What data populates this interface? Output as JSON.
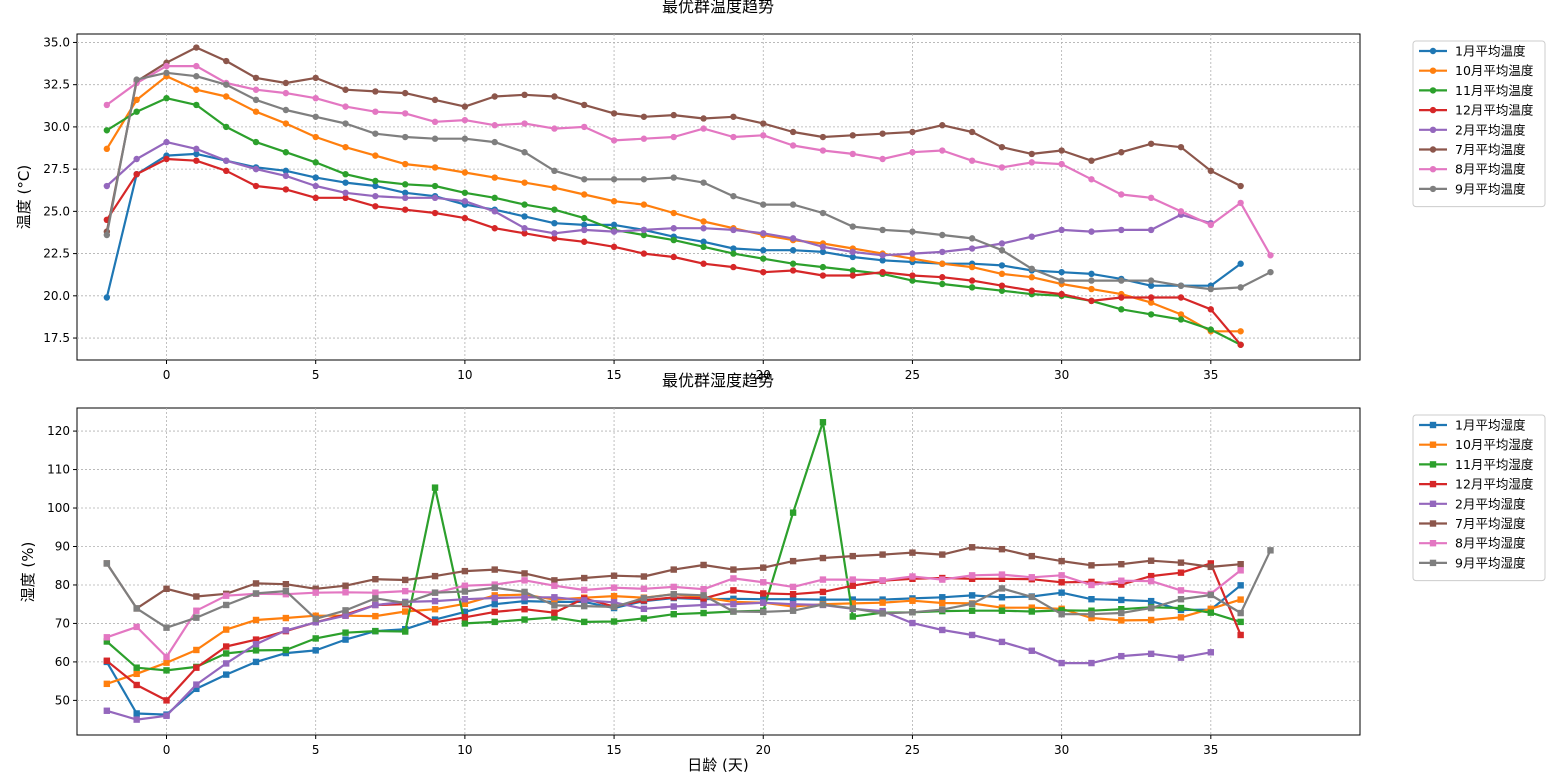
{
  "chart_data": [
    {
      "type": "line",
      "title": "最优群温度趋势",
      "xlabel": "",
      "ylabel": "温度 (°C)",
      "xlim": [
        -3,
        40
      ],
      "ylim": [
        16.2,
        35.5
      ],
      "xticks": [
        0,
        5,
        10,
        15,
        20,
        25,
        30,
        35
      ],
      "yticks": [
        17.5,
        20.0,
        22.5,
        25.0,
        27.5,
        30.0,
        32.5,
        35.0
      ],
      "ytick_labels": [
        "17.5",
        "20.0",
        "22.5",
        "25.0",
        "27.5",
        "30.0",
        "32.5",
        "35.0"
      ],
      "grid": true,
      "legend_position": "outside-right",
      "marker": "circle",
      "series": [
        {
          "name": "1月平均温度",
          "color": "#1f77b4",
          "x_start": -2,
          "values": [
            19.9,
            27.2,
            28.3,
            28.4,
            28.0,
            27.6,
            27.4,
            27.0,
            26.7,
            26.5,
            26.1,
            25.9,
            25.4,
            25.1,
            24.7,
            24.3,
            24.2,
            24.2,
            23.9,
            23.5,
            23.2,
            22.8,
            22.7,
            22.7,
            22.6,
            22.3,
            22.1,
            22.0,
            21.9,
            21.9,
            21.8,
            21.5,
            21.4,
            21.3,
            21.0,
            20.6,
            20.6,
            20.6,
            21.9
          ]
        },
        {
          "name": "10月平均温度",
          "color": "#ff7f0e",
          "x_start": -2,
          "values": [
            28.7,
            31.6,
            33.0,
            32.2,
            31.8,
            30.9,
            30.2,
            29.4,
            28.8,
            28.3,
            27.8,
            27.6,
            27.3,
            27.0,
            26.7,
            26.4,
            26.0,
            25.6,
            25.4,
            24.9,
            24.4,
            24.0,
            23.6,
            23.3,
            23.1,
            22.8,
            22.5,
            22.2,
            21.9,
            21.7,
            21.3,
            21.1,
            20.7,
            20.4,
            20.1,
            19.6,
            18.9,
            17.9,
            17.9
          ]
        },
        {
          "name": "11月平均温度",
          "color": "#2ca02c",
          "x_start": -2,
          "values": [
            29.8,
            30.9,
            31.7,
            31.3,
            30.0,
            29.1,
            28.5,
            27.9,
            27.2,
            26.8,
            26.6,
            26.5,
            26.1,
            25.8,
            25.4,
            25.1,
            24.6,
            23.9,
            23.6,
            23.3,
            22.9,
            22.5,
            22.2,
            21.9,
            21.7,
            21.5,
            21.3,
            20.9,
            20.7,
            20.5,
            20.3,
            20.1,
            20.0,
            19.7,
            19.2,
            18.9,
            18.6,
            18.0,
            17.1
          ]
        },
        {
          "name": "12月平均温度",
          "color": "#d62728",
          "x_start": -2,
          "values": [
            24.5,
            27.2,
            28.1,
            28.0,
            27.4,
            26.5,
            26.3,
            25.8,
            25.8,
            25.3,
            25.1,
            24.9,
            24.6,
            24.0,
            23.7,
            23.4,
            23.2,
            22.9,
            22.5,
            22.3,
            21.9,
            21.7,
            21.4,
            21.5,
            21.2,
            21.2,
            21.4,
            21.2,
            21.1,
            20.9,
            20.6,
            20.3,
            20.1,
            19.7,
            19.9,
            19.9,
            19.9,
            19.2,
            17.1
          ]
        },
        {
          "name": "2月平均温度",
          "color": "#9467bd",
          "x_start": -2,
          "values": [
            26.5,
            28.1,
            29.1,
            28.7,
            28.0,
            27.5,
            27.1,
            26.5,
            26.1,
            25.9,
            25.8,
            25.8,
            25.6,
            25.0,
            24.0,
            23.7,
            23.9,
            23.8,
            23.9,
            24.0,
            24.0,
            23.9,
            23.7,
            23.4,
            22.9,
            22.6,
            22.4,
            22.5,
            22.6,
            22.8,
            23.1,
            23.5,
            23.9,
            23.8,
            23.9,
            23.9,
            24.8,
            24.3
          ]
        },
        {
          "name": "7月平均温度",
          "color": "#8c564b",
          "x_start": -2,
          "values": [
            23.8,
            32.7,
            33.8,
            34.7,
            33.9,
            32.9,
            32.6,
            32.9,
            32.2,
            32.1,
            32.0,
            31.6,
            31.2,
            31.8,
            31.9,
            31.8,
            31.3,
            30.8,
            30.6,
            30.7,
            30.5,
            30.6,
            30.2,
            29.7,
            29.4,
            29.5,
            29.6,
            29.7,
            30.1,
            29.7,
            28.8,
            28.4,
            28.6,
            28.0,
            28.5,
            29.0,
            28.8,
            27.4,
            26.5
          ]
        },
        {
          "name": "8月平均温度",
          "color": "#e377c2",
          "x_start": -2,
          "values": [
            31.3,
            32.6,
            33.6,
            33.6,
            32.6,
            32.2,
            32.0,
            31.7,
            31.2,
            30.9,
            30.8,
            30.3,
            30.4,
            30.1,
            30.2,
            29.9,
            30.0,
            29.2,
            29.3,
            29.4,
            29.9,
            29.4,
            29.5,
            28.9,
            28.6,
            28.4,
            28.1,
            28.5,
            28.6,
            28.0,
            27.6,
            27.9,
            27.8,
            26.9,
            26.0,
            25.8,
            25.0,
            24.2,
            25.5,
            22.4
          ]
        },
        {
          "name": "9月平均温度",
          "color": "#7f7f7f",
          "x_start": -2,
          "values": [
            23.6,
            32.8,
            33.2,
            33.0,
            32.5,
            31.6,
            31.0,
            30.6,
            30.2,
            29.6,
            29.4,
            29.3,
            29.3,
            29.1,
            28.5,
            27.4,
            26.9,
            26.9,
            26.9,
            27.0,
            26.7,
            25.9,
            25.4,
            25.4,
            24.9,
            24.1,
            23.9,
            23.8,
            23.6,
            23.4,
            22.7,
            21.6,
            20.9,
            20.9,
            20.9,
            20.9,
            20.6,
            20.4,
            20.5,
            21.4
          ]
        }
      ]
    },
    {
      "type": "line",
      "title": "最优群湿度趋势",
      "xlabel": "日龄 (天)",
      "ylabel": "湿度 (%)",
      "xlim": [
        -3,
        40
      ],
      "ylim": [
        41,
        126
      ],
      "xticks": [
        0,
        5,
        10,
        15,
        20,
        25,
        30,
        35
      ],
      "yticks": [
        50,
        60,
        70,
        80,
        90,
        100,
        110,
        120
      ],
      "ytick_labels": [
        "50",
        "60",
        "70",
        "80",
        "90",
        "100",
        "110",
        "120"
      ],
      "grid": true,
      "legend_position": "outside-right",
      "marker": "square",
      "series": [
        {
          "name": "1月平均湿度",
          "color": "#1f77b4",
          "x_start": -2,
          "values": [
            60,
            46.6,
            46.3,
            53,
            56.7,
            60,
            62.3,
            63,
            65.8,
            68,
            68.5,
            71,
            73,
            75,
            75.8,
            75.6,
            75.6,
            74,
            75.8,
            76.6,
            76.3,
            76.4,
            76.3,
            76.3,
            76.2,
            76.2,
            76.2,
            76.5,
            76.8,
            77.3,
            76.8,
            77,
            78,
            76.3,
            76.1,
            75.8,
            73.5,
            73.6,
            79.9
          ]
        },
        {
          "name": "10月平均湿度",
          "color": "#ff7f0e",
          "x_start": -2,
          "values": [
            54.3,
            56.9,
            59.8,
            63.1,
            68.4,
            70.9,
            71.4,
            72,
            72,
            71.9,
            73.1,
            73.7,
            75.1,
            77.3,
            77.5,
            76.2,
            76.7,
            77.1,
            76.7,
            77.6,
            76.8,
            75.6,
            75.4,
            74.4,
            75,
            75.2,
            75.4,
            75.9,
            75.3,
            75.2,
            74.1,
            74.1,
            73.8,
            71.4,
            70.8,
            70.9,
            71.6,
            73.8,
            76.2
          ]
        },
        {
          "name": "11月平均湿度",
          "color": "#2ca02c",
          "x_start": -2,
          "values": [
            65.3,
            58.5,
            57.8,
            58.7,
            62.2,
            63,
            63.1,
            66.1,
            67.6,
            68,
            67.9,
            105.3,
            70,
            70.4,
            71,
            71.6,
            70.4,
            70.5,
            71.3,
            72.4,
            72.7,
            73.1,
            73.3,
            98.8,
            122.3,
            71.8,
            72.8,
            72.9,
            73.2,
            73.3,
            73.3,
            73.1,
            73.4,
            73.3,
            73.7,
            74.2,
            74,
            72.8,
            70.4
          ]
        },
        {
          "name": "12月平均湿度",
          "color": "#d62728",
          "x_start": -2,
          "values": [
            60.3,
            54,
            50,
            58.5,
            64,
            65.8,
            68,
            70.3,
            72.3,
            74.8,
            75,
            70.3,
            71.6,
            73,
            73.7,
            72.8,
            76.5,
            74.4,
            76,
            76.8,
            76.5,
            78.6,
            77.8,
            77.6,
            78.2,
            79.8,
            81.1,
            81.6,
            81.8,
            81.6,
            81.6,
            81.5,
            80.7,
            80.8,
            80.1,
            82.3,
            83.2,
            85.6,
            67
          ]
        },
        {
          "name": "2月平均湿度",
          "color": "#9467bd",
          "x_start": -2,
          "values": [
            47.3,
            45,
            46,
            54.1,
            59.6,
            64.6,
            68.2,
            70.3,
            72,
            74.8,
            75.6,
            75.8,
            76.3,
            76.6,
            76.8,
            76.8,
            76,
            75.5,
            73.8,
            74.4,
            74.8,
            75,
            75.4,
            75,
            74.8,
            73.8,
            73.2,
            70.1,
            68.3,
            67,
            65.2,
            62.9,
            59.7,
            59.7,
            61.5,
            62.1,
            61.1,
            62.5
          ]
        },
        {
          "name": "7月平均湿度",
          "color": "#8c564b",
          "x_start": -2,
          "values": [
            85.6,
            73.9,
            79,
            77,
            77.7,
            80.4,
            80.2,
            79,
            79.8,
            81.5,
            81.3,
            82.3,
            83.6,
            84,
            83,
            81.2,
            81.8,
            82.4,
            82.2,
            84,
            85.2,
            84,
            84.5,
            86.2,
            87,
            87.5,
            87.9,
            88.4,
            87.9,
            89.8,
            89.3,
            87.5,
            86.2,
            85.1,
            85.4,
            86.3,
            85.8,
            84.7,
            85.4
          ]
        },
        {
          "name": "8月平均湿度",
          "color": "#e377c2",
          "x_start": -2,
          "values": [
            66.4,
            69.1,
            61.3,
            73.3,
            77.2,
            77.7,
            77.6,
            78,
            78.1,
            78,
            78.4,
            78,
            79.8,
            80.1,
            81.2,
            79.8,
            78.7,
            79.3,
            79,
            79.5,
            78.9,
            81.7,
            80.7,
            79.5,
            81.4,
            81.4,
            81.2,
            82.2,
            81.4,
            82.5,
            82.7,
            82,
            82.5,
            80,
            81.1,
            81,
            78.6,
            77.7,
            83.8
          ]
        },
        {
          "name": "9月平均湿度",
          "color": "#7f7f7f",
          "x_start": -2,
          "values": [
            85.6,
            73.9,
            68.9,
            71.5,
            74.8,
            77.8,
            78.4,
            71.2,
            73.4,
            76.5,
            75.3,
            78,
            78.3,
            79.3,
            78.2,
            74.7,
            74.5,
            74.3,
            76.6,
            77.6,
            77.3,
            73.1,
            73,
            73.3,
            74.9,
            73.9,
            72.6,
            72.9,
            73.6,
            75.1,
            79.1,
            76.9,
            72.4,
            72.4,
            72.7,
            74,
            76.3,
            77.4,
            72.7,
            89
          ]
        }
      ]
    }
  ]
}
